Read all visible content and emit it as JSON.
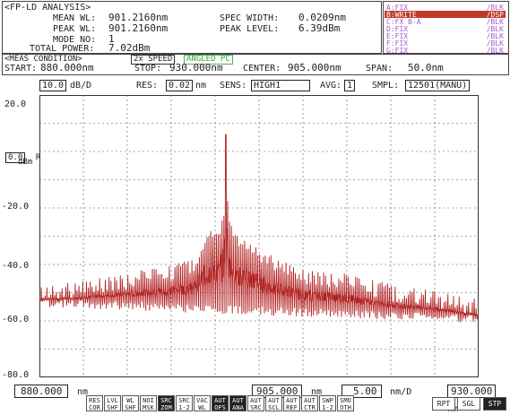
{
  "analysis": {
    "title": "<FP-LD ANALYSIS>",
    "mean_wl_label": "MEAN WL:",
    "mean_wl": "901.2160nm",
    "peak_wl_label": "PEAK WL:",
    "peak_wl": "901.2160nm",
    "mode_no_label": "MODE NO:",
    "mode_no": "1",
    "total_power_label": "TOTAL POWER:",
    "total_power": "7.02dBm",
    "spec_width_label": "SPEC WIDTH:",
    "spec_width": "0.0209nm",
    "peak_level_label": "PEAK LEVEL:",
    "peak_level": "6.39dBm"
  },
  "traces": [
    {
      "label": "A:FIX",
      "mode": "/BLK",
      "active": false
    },
    {
      "label": "B:WRITE",
      "mode": "/DSP",
      "active": true
    },
    {
      "label": "C:FX B-A",
      "mode": "/BLK",
      "active": false
    },
    {
      "label": "D:FIX",
      "mode": "/BLK",
      "active": false
    },
    {
      "label": "E:FIX",
      "mode": "/BLK",
      "active": false
    },
    {
      "label": "F:FIX",
      "mode": "/BLK",
      "active": false
    },
    {
      "label": "G:FIX",
      "mode": "/BLK",
      "active": false
    }
  ],
  "meas": {
    "title": "<MEAS CONDITION>",
    "speed": "2x SPEED",
    "angled": "ANGLED PC",
    "start_label": "START:",
    "start": "880.000nm",
    "stop_label": "STOP:",
    "stop": "930.000nm",
    "center_label": "CENTER:",
    "center": "905.000nm",
    "span_label": "SPAN:",
    "span": "50.0nm"
  },
  "settings": {
    "scale": "10.0",
    "scale_unit": "dB/D",
    "res_label": "RES:",
    "res": "0.02",
    "res_unit": "nm",
    "sens_label": "SENS:",
    "sens": "HIGH1",
    "avg_label": "AVG:",
    "avg": "1",
    "smpl_label": "SMPL:",
    "smpl": "12501(MANU)"
  },
  "ref": {
    "value": "0.0",
    "label": "REF",
    "unit": "dBm"
  },
  "bottom": {
    "start": "880.000",
    "start_unit": "nm",
    "center": "905.000",
    "center_unit": "nm",
    "div": "5.00",
    "div_unit": "nm/D",
    "stop": "930.000",
    "stop_unit": "nm"
  },
  "softkeys": [
    {
      "top": "RES",
      "bottom": "COR",
      "active": false
    },
    {
      "top": "LVL",
      "bottom": "SHF",
      "active": false
    },
    {
      "top": "WL",
      "bottom": "SHF",
      "active": false
    },
    {
      "top": "NOI",
      "bottom": "MSK",
      "active": false
    },
    {
      "top": "SRC",
      "bottom": "ZOM",
      "active": true
    },
    {
      "top": "SRC",
      "bottom": "1-2",
      "active": false
    },
    {
      "top": "VAC",
      "bottom": "WL",
      "active": false
    },
    {
      "top": "AUT",
      "bottom": "OFS",
      "active": true
    },
    {
      "top": "AUT",
      "bottom": "ANA",
      "active": true
    },
    {
      "top": "AUT",
      "bottom": "SRC",
      "active": false
    },
    {
      "top": "AUT",
      "bottom": "SCL",
      "active": false
    },
    {
      "top": "AUT",
      "bottom": "REF",
      "active": false
    },
    {
      "top": "AUT",
      "bottom": "CTR",
      "active": false
    },
    {
      "top": "SWP",
      "bottom": "1-2",
      "active": false
    },
    {
      "top": "SMO",
      "bottom": "OTH",
      "active": false
    }
  ],
  "sweep_buttons": [
    {
      "label": "RPT",
      "active": false
    },
    {
      "label": "SGL",
      "active": false
    },
    {
      "label": "STP",
      "active": true
    }
  ],
  "chart_data": {
    "type": "line",
    "xlim": [
      880.0,
      930.0
    ],
    "ylim": [
      -80,
      20
    ],
    "y_ticks": [
      "20.0",
      "-20.0",
      "-40.0",
      "-60.0",
      "-80.0"
    ],
    "grid": true,
    "trace_color": "#b22222",
    "series": [
      {
        "x": [
          880.0,
          882.5,
          885.0,
          887.5,
          890.0,
          892.5,
          895.0,
          897.5,
          899.0,
          900.0,
          900.5,
          901.0,
          901.2,
          901.5,
          902.0,
          903.0,
          905.0,
          907.5,
          910.0,
          912.5,
          915.0,
          917.5,
          920.0,
          922.5,
          925.0,
          927.5,
          930.0
        ],
        "y": [
          -53,
          -52,
          -51,
          -49,
          -48,
          -46,
          -45,
          -42,
          -33,
          -29,
          -32,
          -23,
          6,
          -26,
          -30,
          -34,
          -38,
          -43,
          -46,
          -47,
          -48,
          -50,
          -52,
          -53,
          -54,
          -56,
          -58
        ]
      }
    ]
  }
}
